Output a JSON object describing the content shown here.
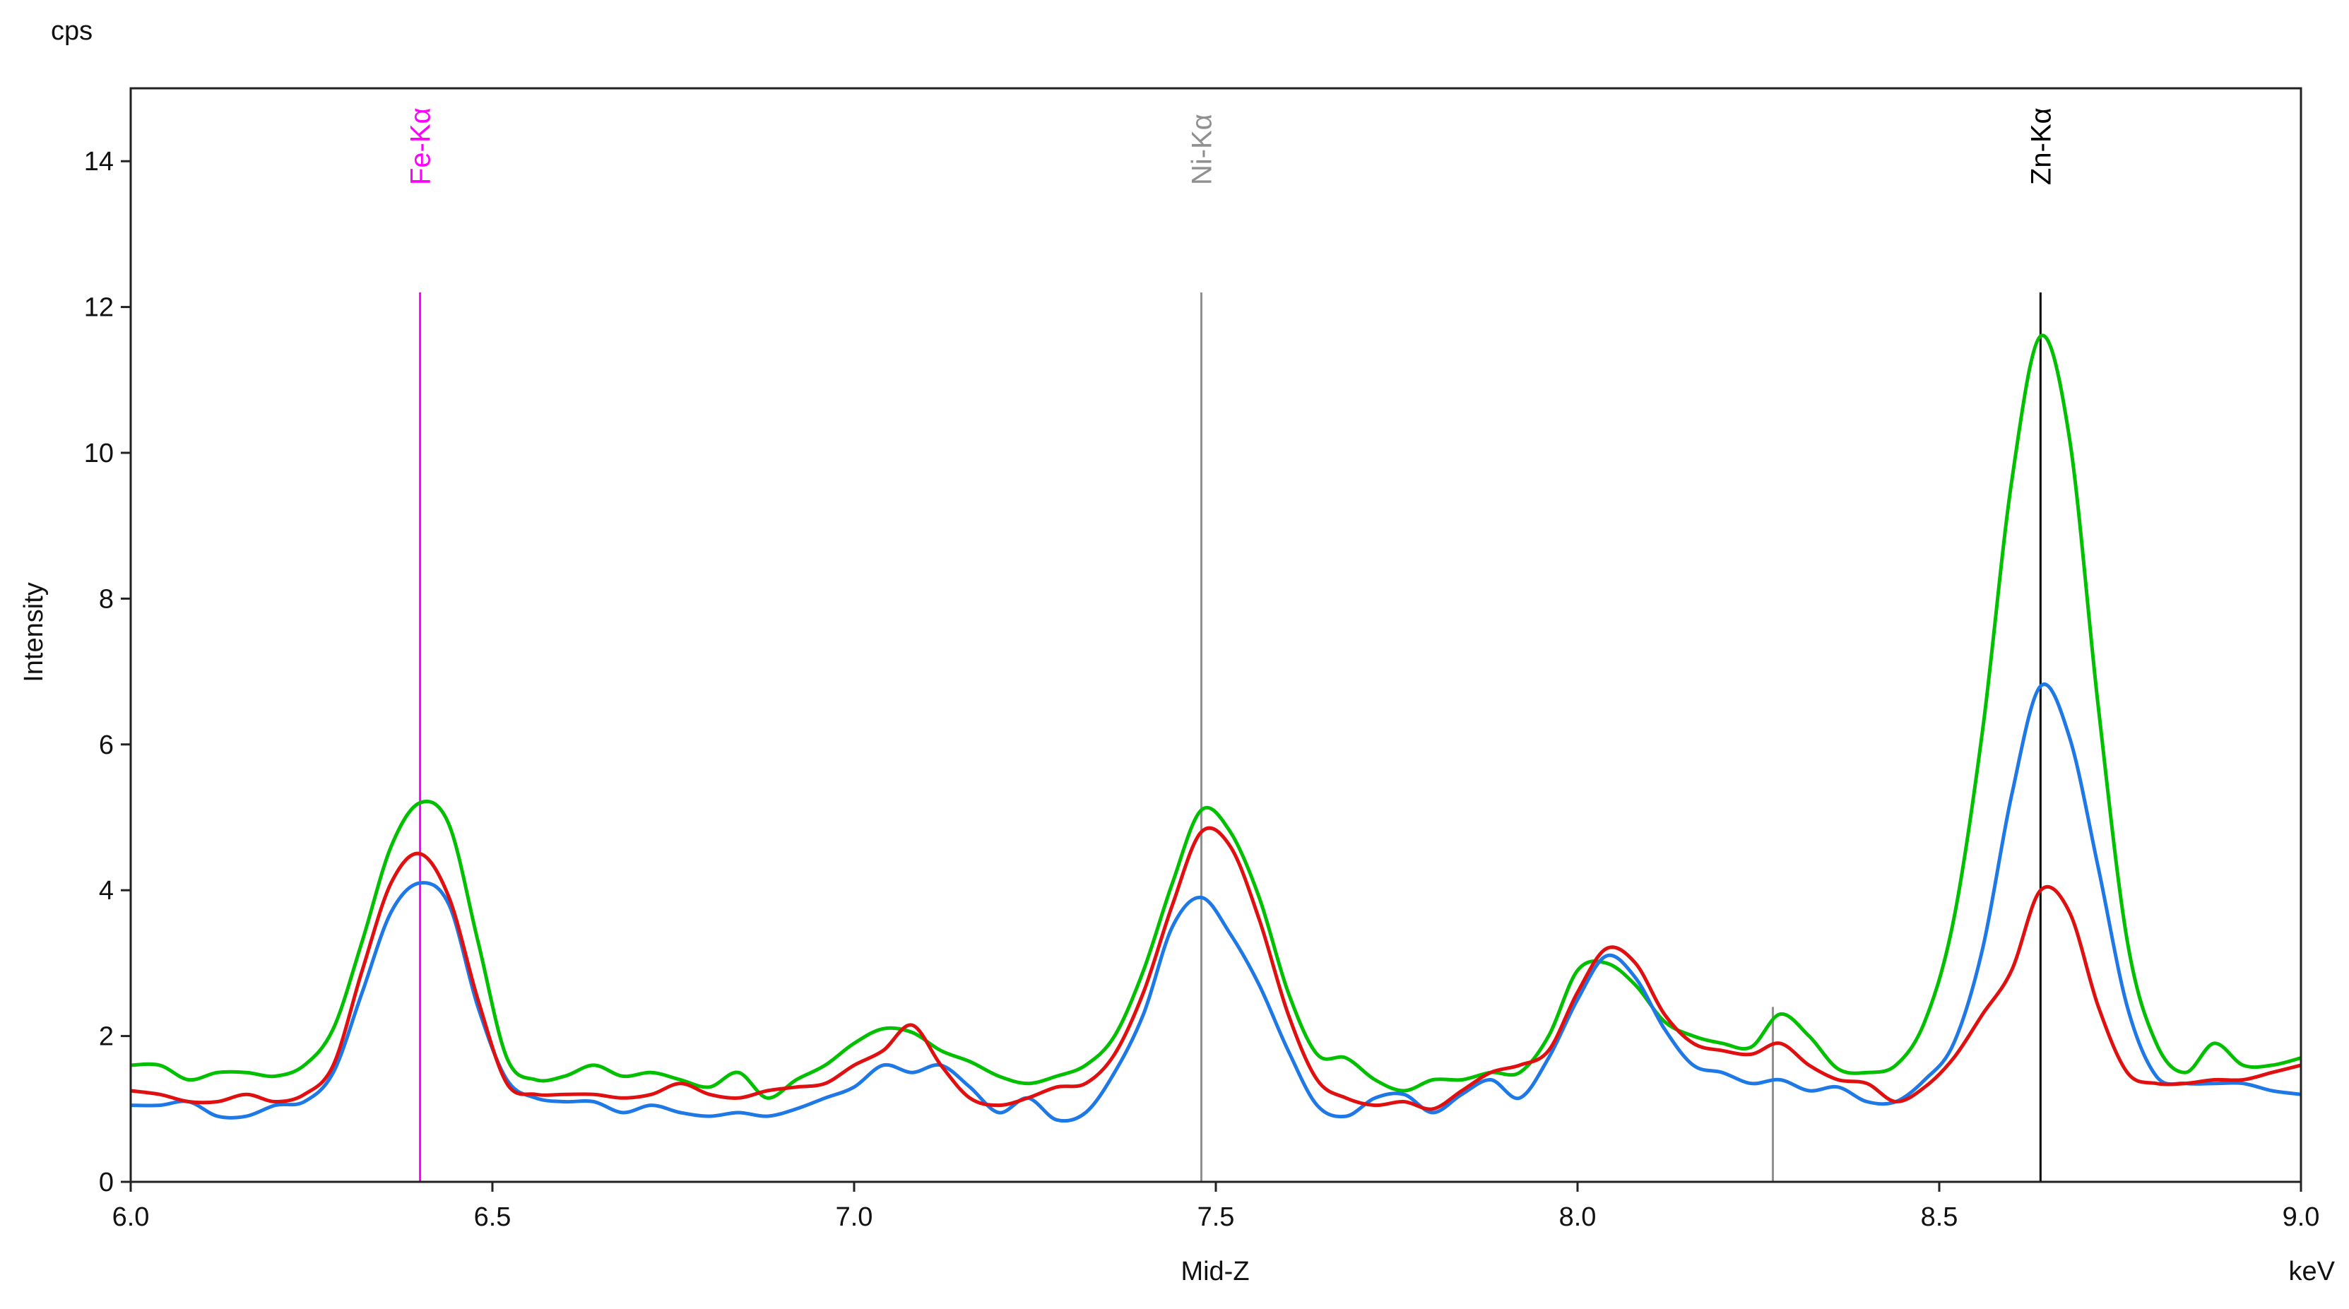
{
  "chart_data": {
    "type": "line",
    "title": "",
    "unit_label": "cps",
    "ylabel": "Intensity",
    "xlabel": "Mid-Z",
    "xunit": "keV",
    "xlim": [
      6.0,
      9.0
    ],
    "ylim": [
      0,
      15
    ],
    "grid": false,
    "xticks": [
      "6.0",
      "6.5",
      "7.0",
      "7.5",
      "8.0",
      "8.5",
      "9.0"
    ],
    "yticks": [
      "0",
      "2",
      "4",
      "6",
      "8",
      "10",
      "12",
      "14"
    ],
    "markers": [
      {
        "label": "Fe-Kα",
        "x": 6.4,
        "color": "#ff00ff",
        "top": 12.2
      },
      {
        "label": "Ni-Kα",
        "x": 7.48,
        "color": "#909090",
        "top": 12.2
      },
      {
        "label": "Zn-Kα",
        "x": 8.64,
        "color": "#000000",
        "top": 12.2
      }
    ],
    "extra_markers": [
      {
        "x": 8.27,
        "color": "#909090",
        "top": 2.4
      }
    ],
    "x": [
      6.0,
      6.04,
      6.08,
      6.12,
      6.16,
      6.2,
      6.24,
      6.28,
      6.32,
      6.36,
      6.4,
      6.44,
      6.48,
      6.52,
      6.56,
      6.6,
      6.64,
      6.68,
      6.72,
      6.76,
      6.8,
      6.84,
      6.88,
      6.92,
      6.96,
      7.0,
      7.04,
      7.08,
      7.12,
      7.16,
      7.2,
      7.24,
      7.28,
      7.32,
      7.36,
      7.4,
      7.44,
      7.48,
      7.52,
      7.56,
      7.6,
      7.64,
      7.68,
      7.72,
      7.76,
      7.8,
      7.84,
      7.88,
      7.92,
      7.96,
      8.0,
      8.04,
      8.08,
      8.12,
      8.16,
      8.2,
      8.24,
      8.28,
      8.32,
      8.36,
      8.4,
      8.44,
      8.48,
      8.52,
      8.56,
      8.6,
      8.64,
      8.68,
      8.72,
      8.76,
      8.8,
      8.84,
      8.88,
      8.92,
      8.96,
      9.0
    ],
    "series": [
      {
        "color": "#00c000",
        "values": [
          1.6,
          1.6,
          1.4,
          1.5,
          1.5,
          1.45,
          1.6,
          2.1,
          3.3,
          4.6,
          5.2,
          4.9,
          3.3,
          1.7,
          1.4,
          1.45,
          1.6,
          1.45,
          1.5,
          1.4,
          1.3,
          1.5,
          1.15,
          1.4,
          1.6,
          1.9,
          2.1,
          2.05,
          1.8,
          1.65,
          1.45,
          1.35,
          1.45,
          1.6,
          2.0,
          2.9,
          4.1,
          5.1,
          4.8,
          3.9,
          2.6,
          1.75,
          1.7,
          1.4,
          1.25,
          1.4,
          1.4,
          1.5,
          1.5,
          2.0,
          2.9,
          3.0,
          2.7,
          2.2,
          2.0,
          1.9,
          1.85,
          2.3,
          2.0,
          1.55,
          1.5,
          1.6,
          2.2,
          3.6,
          6.2,
          9.6,
          11.6,
          10.2,
          6.5,
          3.3,
          1.9,
          1.5,
          1.9,
          1.6,
          1.6,
          1.7
        ]
      },
      {
        "color": "#1e78e6",
        "values": [
          1.05,
          1.05,
          1.1,
          0.9,
          0.9,
          1.05,
          1.1,
          1.5,
          2.6,
          3.7,
          4.1,
          3.8,
          2.4,
          1.4,
          1.15,
          1.1,
          1.1,
          0.95,
          1.05,
          0.95,
          0.9,
          0.95,
          0.9,
          1.0,
          1.15,
          1.3,
          1.6,
          1.5,
          1.6,
          1.3,
          0.95,
          1.15,
          0.85,
          0.95,
          1.5,
          2.3,
          3.5,
          3.9,
          3.4,
          2.7,
          1.8,
          1.05,
          0.9,
          1.15,
          1.2,
          0.95,
          1.2,
          1.4,
          1.15,
          1.7,
          2.5,
          3.1,
          2.8,
          2.1,
          1.6,
          1.5,
          1.35,
          1.4,
          1.25,
          1.3,
          1.1,
          1.1,
          1.4,
          1.9,
          3.2,
          5.3,
          6.8,
          6.1,
          4.3,
          2.4,
          1.45,
          1.35,
          1.35,
          1.35,
          1.25,
          1.2
        ]
      },
      {
        "color": "#e01010",
        "values": [
          1.25,
          1.2,
          1.1,
          1.1,
          1.2,
          1.1,
          1.2,
          1.6,
          2.9,
          4.1,
          4.5,
          3.9,
          2.5,
          1.35,
          1.2,
          1.2,
          1.2,
          1.15,
          1.2,
          1.35,
          1.2,
          1.15,
          1.25,
          1.3,
          1.35,
          1.6,
          1.8,
          2.15,
          1.6,
          1.15,
          1.05,
          1.15,
          1.3,
          1.35,
          1.75,
          2.6,
          3.8,
          4.8,
          4.6,
          3.6,
          2.3,
          1.4,
          1.15,
          1.05,
          1.1,
          1.0,
          1.25,
          1.5,
          1.6,
          1.8,
          2.6,
          3.2,
          3.0,
          2.3,
          1.9,
          1.8,
          1.75,
          1.9,
          1.6,
          1.4,
          1.35,
          1.1,
          1.3,
          1.7,
          2.3,
          2.9,
          4.0,
          3.7,
          2.4,
          1.5,
          1.35,
          1.35,
          1.4,
          1.4,
          1.5,
          1.6
        ]
      }
    ]
  }
}
